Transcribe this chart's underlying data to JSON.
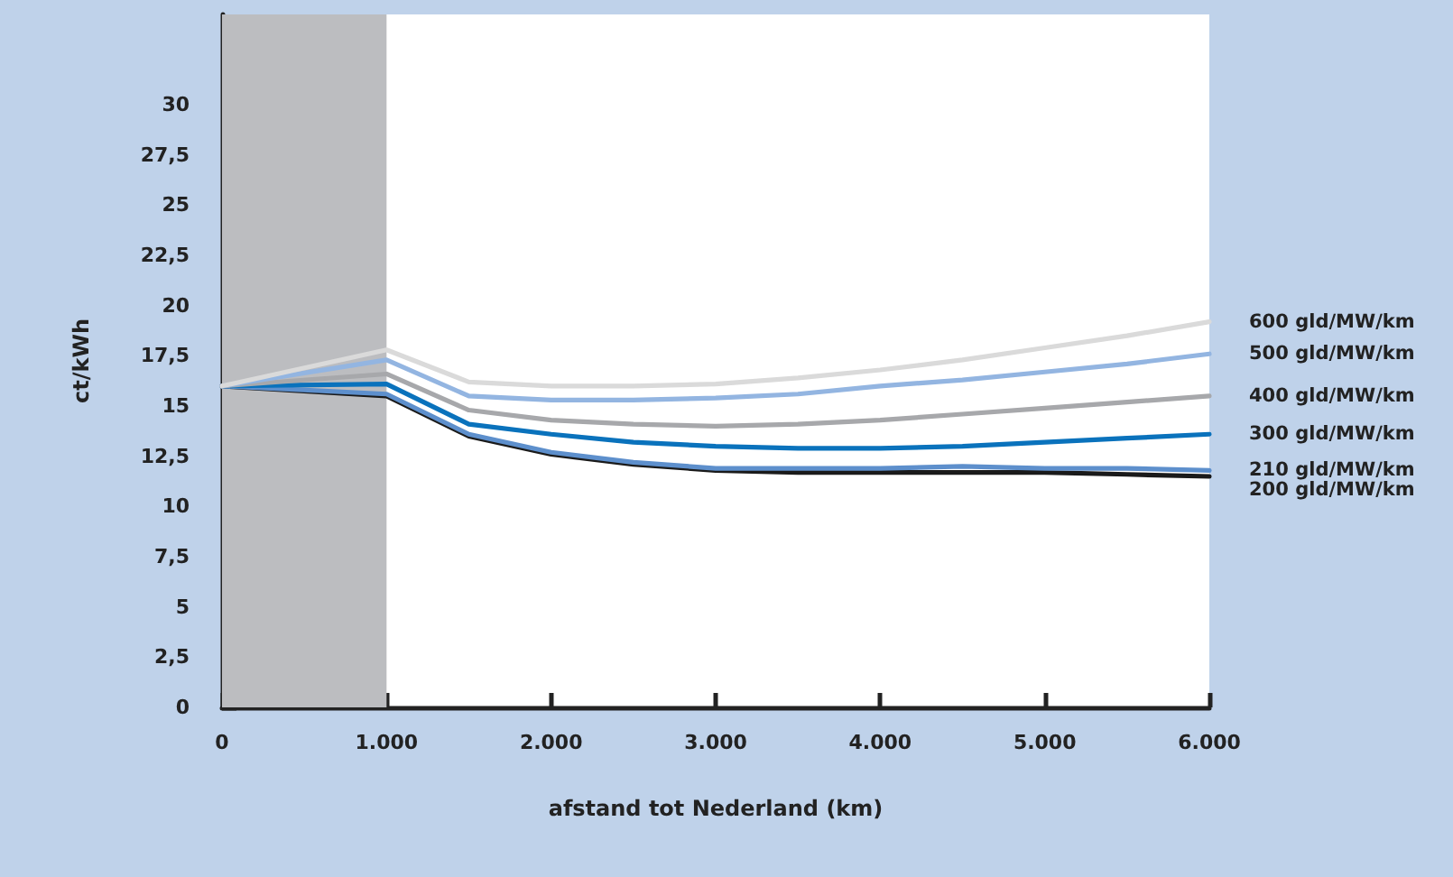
{
  "chart_data": {
    "type": "line",
    "xlabel": "afstand tot Nederland (km)",
    "ylabel": "ct/kWh",
    "x": [
      0,
      1000,
      1500,
      2000,
      2500,
      3000,
      3500,
      4000,
      4500,
      5000,
      5500,
      6000
    ],
    "series": [
      {
        "name": "600 gld/MW/km",
        "color": "#dadada",
        "values": [
          16,
          17.8,
          16.2,
          16.0,
          16.0,
          16.1,
          16.4,
          16.8,
          17.3,
          17.9,
          18.5,
          19.2
        ]
      },
      {
        "name": "500 gld/MW/km",
        "color": "#93b5e1",
        "values": [
          16,
          17.3,
          15.5,
          15.3,
          15.3,
          15.4,
          15.6,
          16.0,
          16.3,
          16.7,
          17.1,
          17.6
        ]
      },
      {
        "name": "400 gld/MW/km",
        "color": "#a7a8ab",
        "values": [
          16,
          16.6,
          14.8,
          14.3,
          14.1,
          14.0,
          14.1,
          14.3,
          14.6,
          14.9,
          15.2,
          15.5
        ]
      },
      {
        "name": "300 gld/MW/km",
        "color": "#0a72bc",
        "values": [
          16,
          16.1,
          14.1,
          13.6,
          13.2,
          13.0,
          12.9,
          12.9,
          13.0,
          13.2,
          13.4,
          13.6
        ]
      },
      {
        "name": "210 gld/MW/km",
        "color": "#5d8fcc",
        "values": [
          16,
          15.6,
          13.6,
          12.7,
          12.2,
          11.9,
          11.9,
          11.9,
          12.0,
          11.9,
          11.9,
          11.8
        ]
      },
      {
        "name": "200 gld/MW/km",
        "color": "#1a1a1a",
        "values": [
          16,
          15.5,
          13.5,
          12.6,
          12.1,
          11.8,
          11.7,
          11.7,
          11.7,
          11.7,
          11.6,
          11.5
        ]
      }
    ],
    "xlim": [
      0,
      6000
    ],
    "xticks": [
      0,
      {
        "value": 1000,
        "label": "1.000"
      },
      {
        "value": 2000,
        "label": "2.000"
      },
      {
        "value": 3000,
        "label": "3.000"
      },
      {
        "value": 4000,
        "label": "4.000"
      },
      {
        "value": 5000,
        "label": "5.000"
      },
      {
        "value": 6000,
        "label": "6.000"
      }
    ],
    "ylim": [
      0,
      34.5
    ],
    "yticks": [
      0,
      {
        "value": 2.5,
        "label": "2,5"
      },
      5,
      {
        "value": 7.5,
        "label": "7,5"
      },
      10,
      {
        "value": 12.5,
        "label": "12,5"
      },
      15,
      {
        "value": 17.5,
        "label": "17,5"
      },
      20,
      {
        "value": 22.5,
        "label": "22,5"
      },
      25,
      {
        "value": 27.5,
        "label": "27,5"
      },
      30
    ],
    "bands": [
      {
        "axis": "x",
        "from": 0,
        "to": 1000,
        "color": "#bcbdc0"
      }
    ],
    "grid": false,
    "marker": "none",
    "line_style": "solid"
  }
}
